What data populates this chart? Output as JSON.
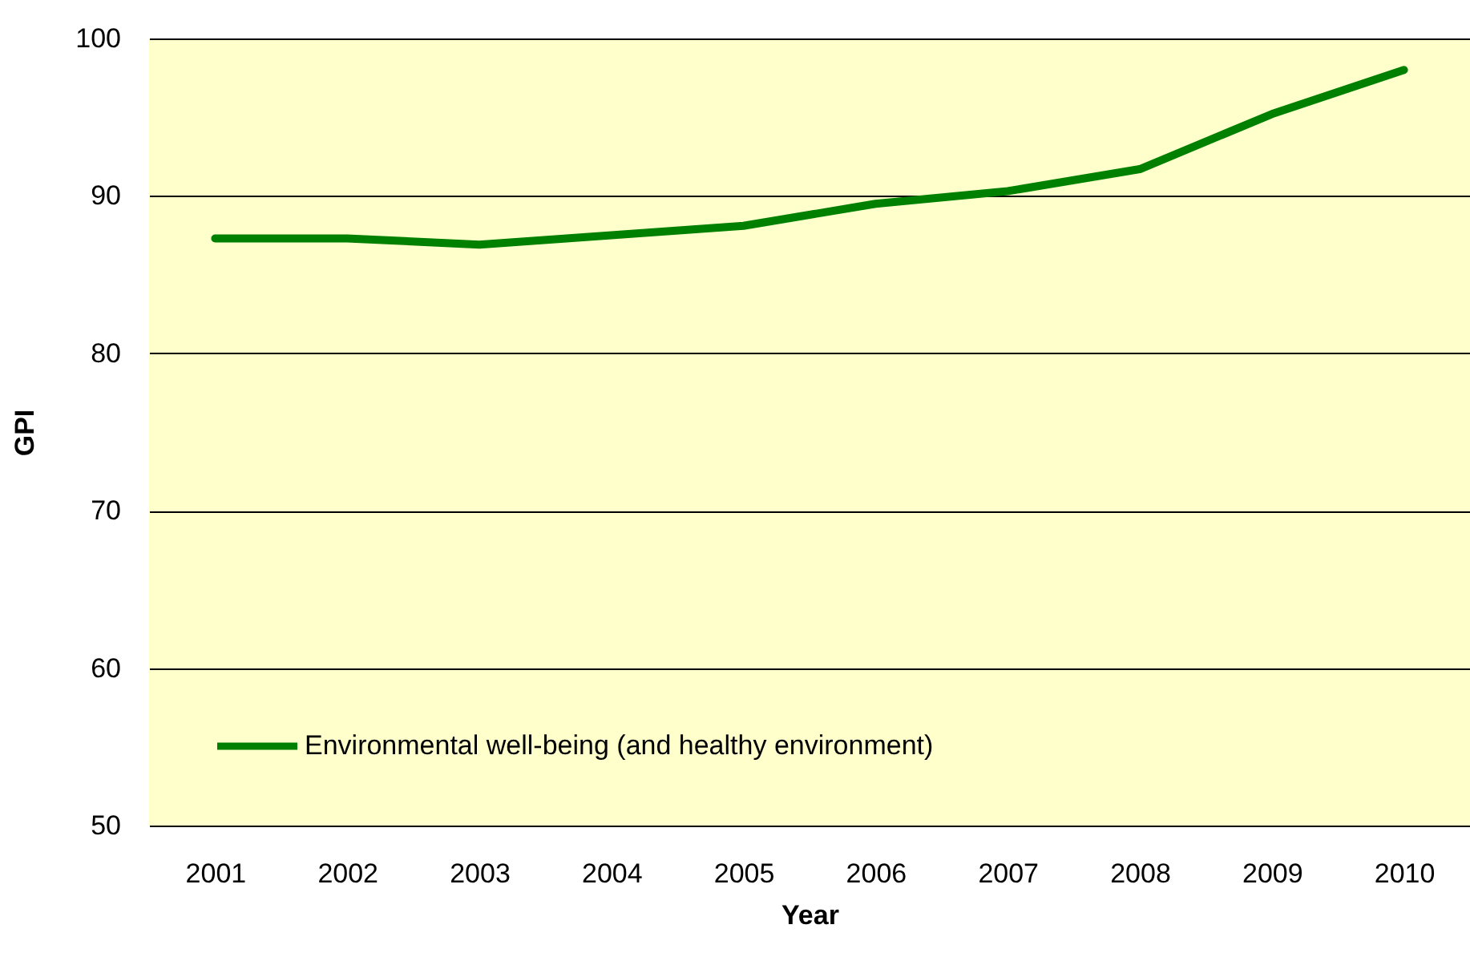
{
  "chart_data": {
    "type": "line",
    "xlabel": "Year",
    "ylabel": "GPI",
    "categories": [
      "2001",
      "2002",
      "2003",
      "2004",
      "2005",
      "2006",
      "2007",
      "2008",
      "2009",
      "2010"
    ],
    "series": [
      {
        "name": "Environmental well-being (and healthy environment)",
        "color": "#008000",
        "values": [
          87.3,
          87.3,
          86.9,
          87.5,
          88.1,
          89.5,
          90.3,
          91.7,
          95.2,
          98.0
        ]
      }
    ],
    "ylim": [
      50,
      100
    ],
    "yticks": [
      50,
      60,
      70,
      80,
      90,
      100
    ],
    "grid": "y",
    "legend": "bottom left",
    "marker": "none",
    "line_style": "solid"
  }
}
